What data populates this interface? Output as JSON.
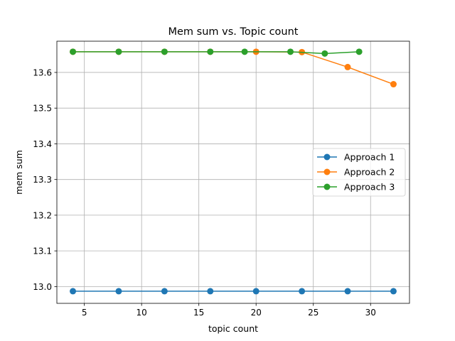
{
  "chart_data": {
    "type": "line",
    "title": "Mem sum vs. Topic count",
    "xlabel": "topic count",
    "ylabel": "mem sum",
    "xlim": [
      2.6,
      33.4
    ],
    "ylim": [
      12.953,
      13.6875
    ],
    "xticks": [
      5,
      10,
      15,
      20,
      25,
      30
    ],
    "yticks": [
      13.0,
      13.1,
      13.2,
      13.3,
      13.4,
      13.5,
      13.6
    ],
    "ytick_labels": [
      "13.0",
      "13.1",
      "13.2",
      "13.3",
      "13.4",
      "13.5",
      "13.6"
    ],
    "grid": true,
    "legend_position": "center-right",
    "series": [
      {
        "name": "Approach 1",
        "color": "#1f77b4",
        "x": [
          4,
          8,
          12,
          16,
          20,
          24,
          28,
          32
        ],
        "y": [
          12.987,
          12.987,
          12.987,
          12.987,
          12.987,
          12.987,
          12.987,
          12.987
        ]
      },
      {
        "name": "Approach 2",
        "color": "#ff7f0e",
        "x": [
          4,
          8,
          12,
          16,
          20,
          24,
          28,
          32
        ],
        "y": [
          13.658,
          13.658,
          13.658,
          13.658,
          13.658,
          13.657,
          13.615,
          13.567
        ]
      },
      {
        "name": "Approach 3",
        "color": "#2ca02c",
        "x": [
          4,
          8,
          12,
          16,
          19,
          23,
          26,
          29
        ],
        "y": [
          13.658,
          13.658,
          13.658,
          13.658,
          13.658,
          13.658,
          13.653,
          13.658
        ]
      }
    ]
  }
}
